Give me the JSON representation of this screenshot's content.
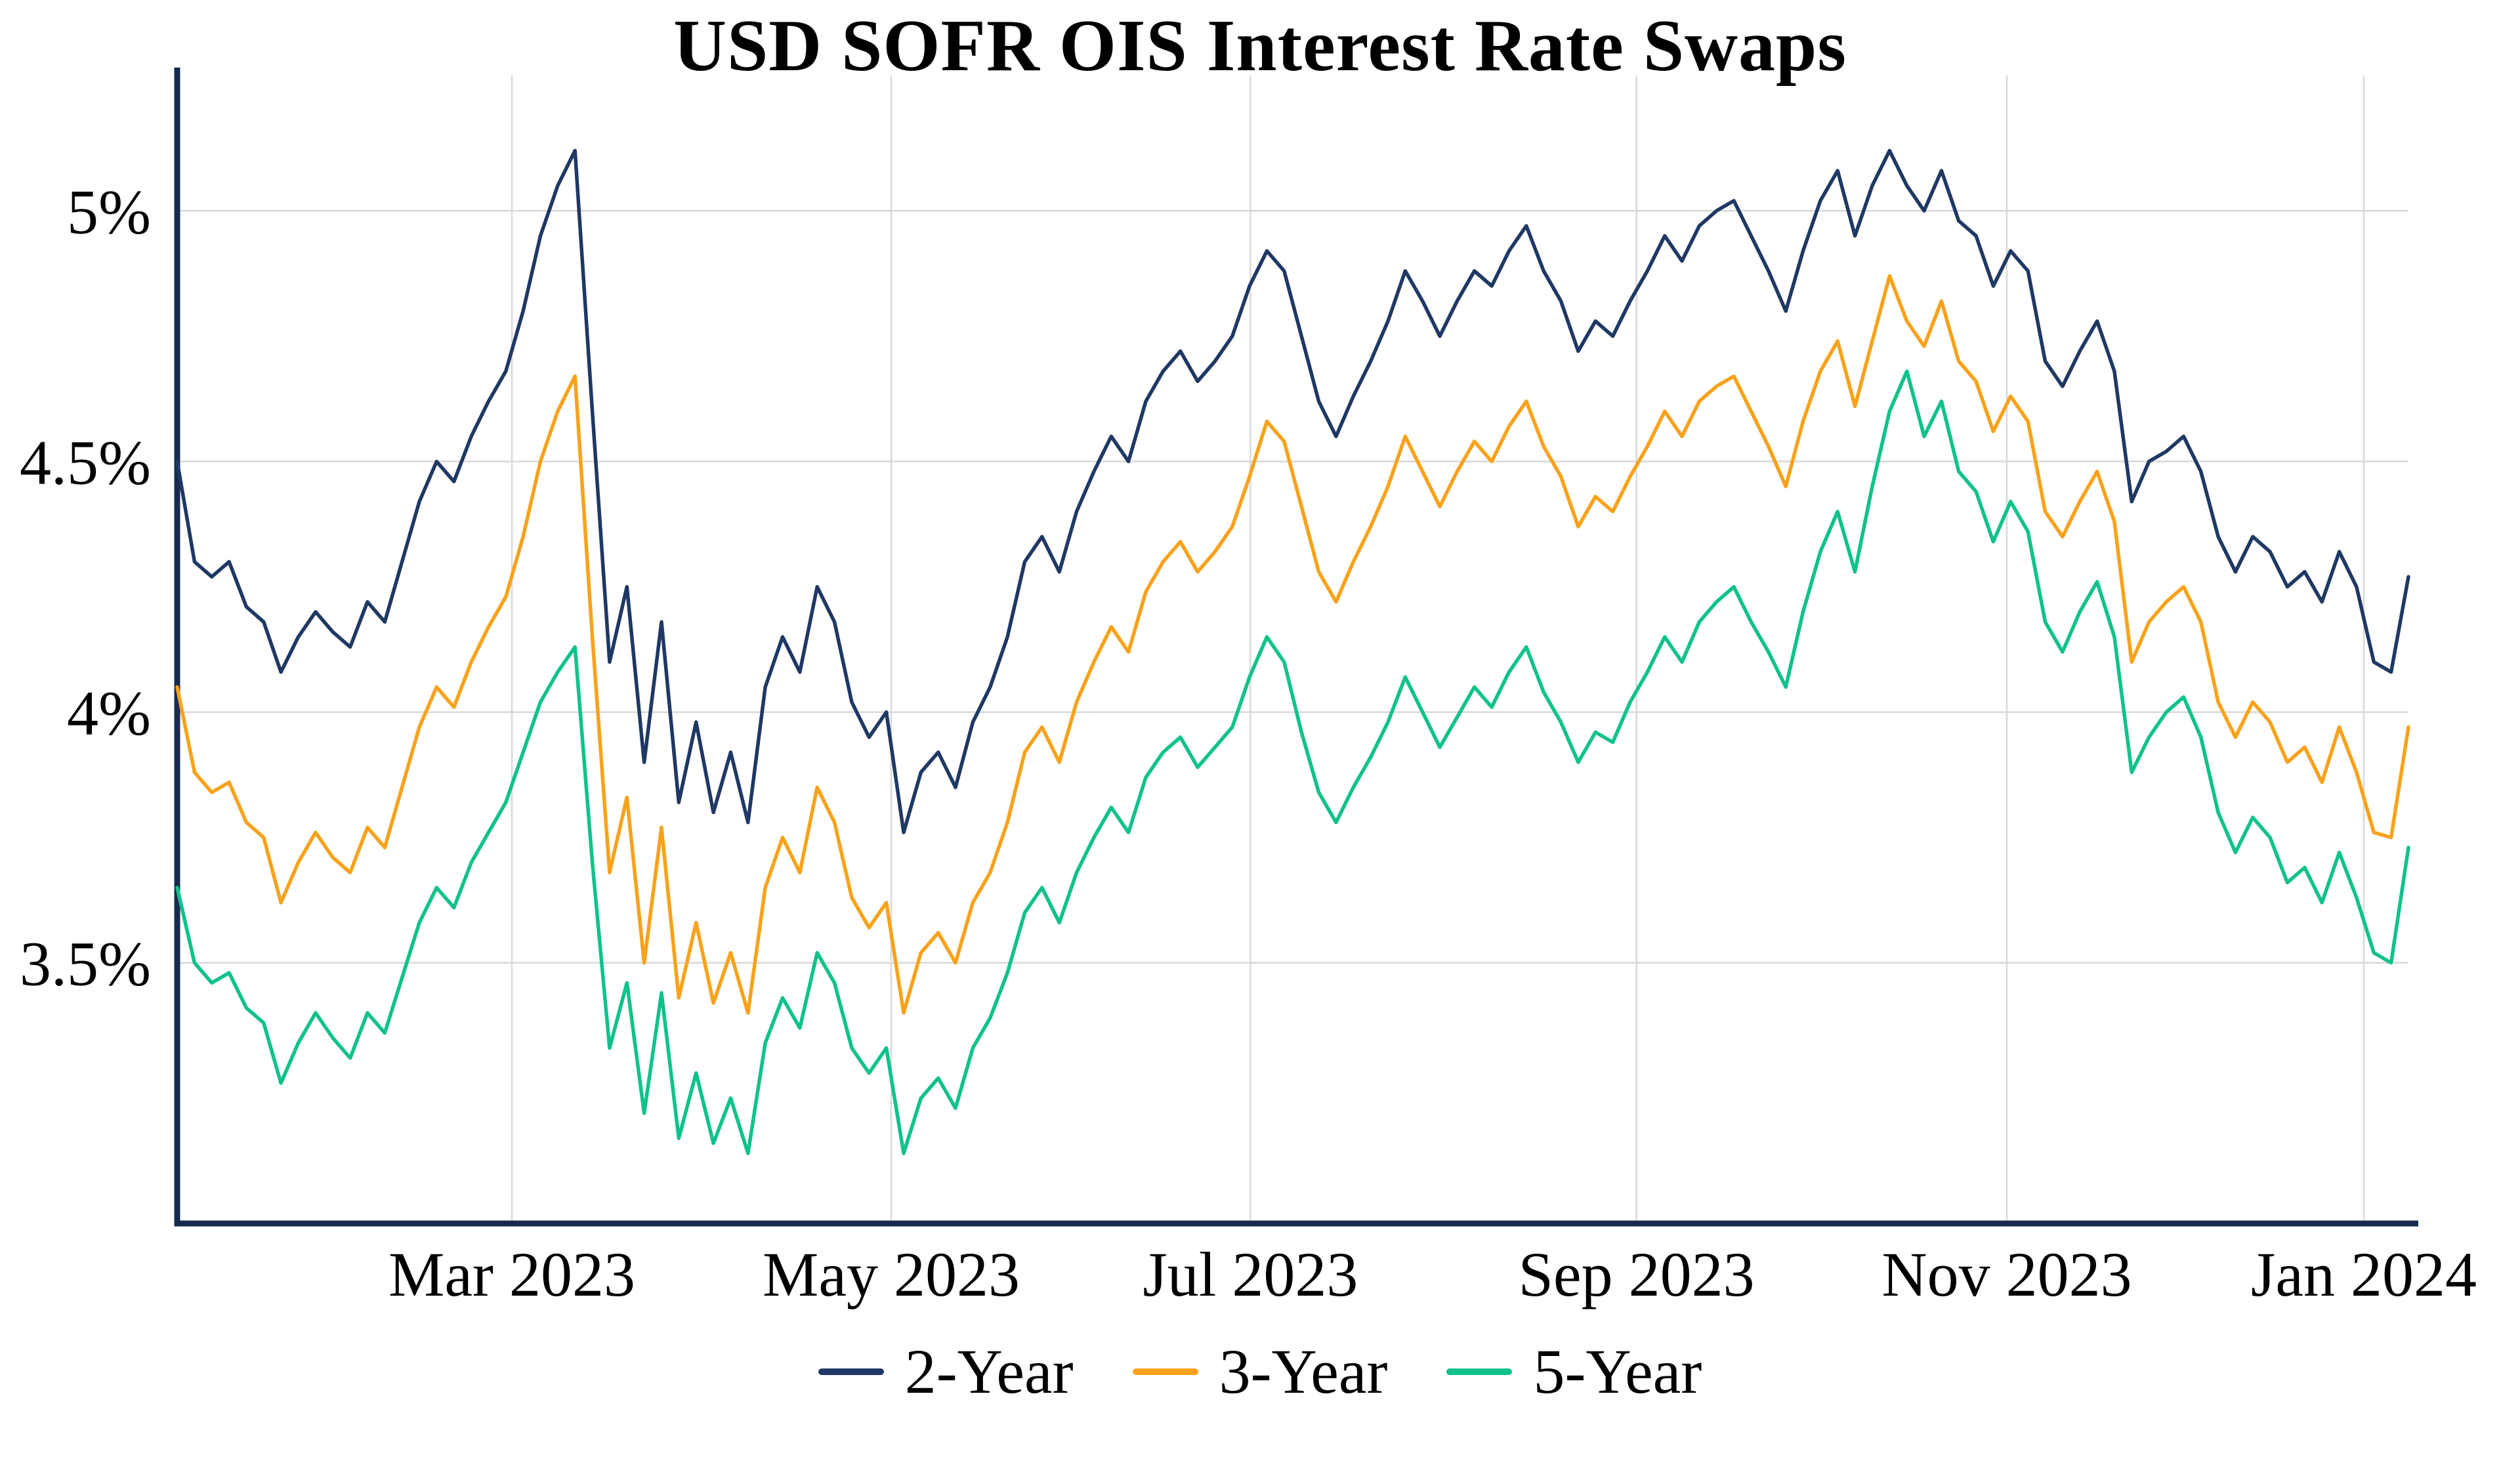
{
  "title": "USD SOFR OIS Interest Rate Swaps",
  "chart_data": {
    "type": "line",
    "title": "USD SOFR OIS Interest Rate Swaps",
    "x_start": "2023-01-03",
    "x_end": "2024-01-12",
    "xlabel": "",
    "ylabel": "",
    "ylim": [
      2.98,
      5.27
    ],
    "grid": true,
    "grid_color": "#d8d8d8",
    "axis_color": "#17294F",
    "legend_position": "bottom",
    "yticks": [
      {
        "value": 3.5,
        "label": "3.5%"
      },
      {
        "value": 4.0,
        "label": "4%"
      },
      {
        "value": 4.5,
        "label": "4.5%"
      },
      {
        "value": 5.0,
        "label": "5%"
      }
    ],
    "xticks": [
      {
        "f": 0.15,
        "label": "Mar 2023"
      },
      {
        "f": 0.32,
        "label": "May 2023"
      },
      {
        "f": 0.481,
        "label": "Jul 2023"
      },
      {
        "f": 0.654,
        "label": "Sep 2023"
      },
      {
        "f": 0.82,
        "label": "Nov 2023"
      },
      {
        "f": 0.98,
        "label": "Jan 2024"
      }
    ],
    "series": [
      {
        "name": "2-Year",
        "color": "#1F3864",
        "values": [
          4.5,
          4.3,
          4.27,
          4.3,
          4.21,
          4.18,
          4.08,
          4.15,
          4.2,
          4.16,
          4.13,
          4.22,
          4.18,
          4.3,
          4.42,
          4.5,
          4.46,
          4.55,
          4.62,
          4.68,
          4.8,
          4.95,
          5.05,
          5.12,
          4.6,
          4.1,
          4.25,
          3.9,
          4.18,
          3.82,
          3.98,
          3.8,
          3.92,
          3.78,
          4.05,
          4.15,
          4.08,
          4.25,
          4.18,
          4.02,
          3.95,
          4.0,
          3.76,
          3.88,
          3.92,
          3.85,
          3.98,
          4.05,
          4.15,
          4.3,
          4.35,
          4.28,
          4.4,
          4.48,
          4.55,
          4.5,
          4.62,
          4.68,
          4.72,
          4.66,
          4.7,
          4.75,
          4.85,
          4.92,
          4.88,
          4.75,
          4.62,
          4.55,
          4.63,
          4.7,
          4.78,
          4.88,
          4.82,
          4.75,
          4.82,
          4.88,
          4.85,
          4.92,
          4.97,
          4.88,
          4.82,
          4.72,
          4.78,
          4.75,
          4.82,
          4.88,
          4.95,
          4.9,
          4.97,
          5.0,
          5.02,
          4.95,
          4.88,
          4.8,
          4.92,
          5.02,
          5.08,
          4.95,
          5.05,
          5.12,
          5.05,
          5.0,
          5.08,
          4.98,
          4.95,
          4.85,
          4.92,
          4.88,
          4.7,
          4.65,
          4.72,
          4.78,
          4.68,
          4.42,
          4.5,
          4.52,
          4.55,
          4.48,
          4.35,
          4.28,
          4.35,
          4.32,
          4.25,
          4.28,
          4.22,
          4.32,
          4.25,
          4.1,
          4.08,
          4.27
        ]
      },
      {
        "name": "3-Year",
        "color": "#F8A21B",
        "values": [
          4.05,
          3.88,
          3.84,
          3.86,
          3.78,
          3.75,
          3.62,
          3.7,
          3.76,
          3.71,
          3.68,
          3.77,
          3.73,
          3.85,
          3.97,
          4.05,
          4.01,
          4.1,
          4.17,
          4.23,
          4.35,
          4.5,
          4.6,
          4.67,
          4.15,
          3.68,
          3.83,
          3.5,
          3.77,
          3.43,
          3.58,
          3.42,
          3.52,
          3.4,
          3.65,
          3.75,
          3.68,
          3.85,
          3.78,
          3.63,
          3.57,
          3.62,
          3.4,
          3.52,
          3.56,
          3.5,
          3.62,
          3.68,
          3.78,
          3.92,
          3.97,
          3.9,
          4.02,
          4.1,
          4.17,
          4.12,
          4.24,
          4.3,
          4.34,
          4.28,
          4.32,
          4.37,
          4.47,
          4.58,
          4.54,
          4.41,
          4.28,
          4.22,
          4.3,
          4.37,
          4.45,
          4.55,
          4.48,
          4.41,
          4.48,
          4.54,
          4.5,
          4.57,
          4.62,
          4.53,
          4.47,
          4.37,
          4.43,
          4.4,
          4.47,
          4.53,
          4.6,
          4.55,
          4.62,
          4.65,
          4.67,
          4.6,
          4.53,
          4.45,
          4.58,
          4.68,
          4.74,
          4.61,
          4.74,
          4.87,
          4.78,
          4.73,
          4.82,
          4.7,
          4.66,
          4.56,
          4.63,
          4.58,
          4.4,
          4.35,
          4.42,
          4.48,
          4.38,
          4.1,
          4.18,
          4.22,
          4.25,
          4.18,
          4.02,
          3.95,
          4.02,
          3.98,
          3.9,
          3.93,
          3.86,
          3.97,
          3.88,
          3.76,
          3.75,
          3.97
        ]
      },
      {
        "name": "5-Year",
        "color": "#0FC28B",
        "values": [
          3.65,
          3.5,
          3.46,
          3.48,
          3.41,
          3.38,
          3.26,
          3.34,
          3.4,
          3.35,
          3.31,
          3.4,
          3.36,
          3.47,
          3.58,
          3.65,
          3.61,
          3.7,
          3.76,
          3.82,
          3.92,
          4.02,
          4.08,
          4.13,
          3.7,
          3.33,
          3.46,
          3.2,
          3.44,
          3.15,
          3.28,
          3.14,
          3.23,
          3.12,
          3.34,
          3.43,
          3.37,
          3.52,
          3.46,
          3.33,
          3.28,
          3.33,
          3.12,
          3.23,
          3.27,
          3.21,
          3.33,
          3.39,
          3.48,
          3.6,
          3.65,
          3.58,
          3.68,
          3.75,
          3.81,
          3.76,
          3.87,
          3.92,
          3.95,
          3.89,
          3.93,
          3.97,
          4.07,
          4.15,
          4.1,
          3.96,
          3.84,
          3.78,
          3.85,
          3.91,
          3.98,
          4.07,
          4.0,
          3.93,
          3.99,
          4.05,
          4.01,
          4.08,
          4.13,
          4.04,
          3.98,
          3.9,
          3.96,
          3.94,
          4.02,
          4.08,
          4.15,
          4.1,
          4.18,
          4.22,
          4.25,
          4.18,
          4.12,
          4.05,
          4.2,
          4.32,
          4.4,
          4.28,
          4.45,
          4.6,
          4.68,
          4.55,
          4.62,
          4.48,
          4.44,
          4.34,
          4.42,
          4.36,
          4.18,
          4.12,
          4.2,
          4.26,
          4.15,
          3.88,
          3.95,
          4.0,
          4.03,
          3.95,
          3.8,
          3.72,
          3.79,
          3.75,
          3.66,
          3.69,
          3.62,
          3.72,
          3.63,
          3.52,
          3.5,
          3.73
        ]
      }
    ]
  }
}
